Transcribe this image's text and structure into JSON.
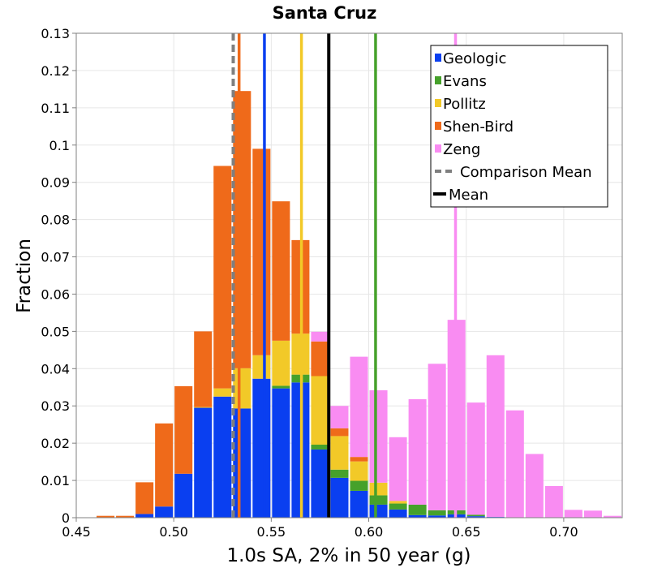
{
  "chart_data": {
    "type": "bar",
    "stacked": true,
    "title": "Santa Cruz",
    "xlabel": "1.0s SA, 2% in 50 year (g)",
    "ylabel": "Fraction",
    "xlim": [
      0.45,
      0.73
    ],
    "ylim": [
      0,
      0.13
    ],
    "x_ticks": [
      "0.45",
      "0.50",
      "0.55",
      "0.60",
      "0.65",
      "0.70"
    ],
    "y_ticks": [
      "0",
      "0.01",
      "0.02",
      "0.03",
      "0.04",
      "0.05",
      "0.06",
      "0.07",
      "0.08",
      "0.09",
      "0.1",
      "0.11",
      "0.12",
      "0.13"
    ],
    "bin_width": 0.01,
    "bin_starts": [
      0.46,
      0.47,
      0.48,
      0.49,
      0.5,
      0.51,
      0.52,
      0.53,
      0.54,
      0.55,
      0.56,
      0.57,
      0.58,
      0.59,
      0.6,
      0.61,
      0.62,
      0.63,
      0.64,
      0.65,
      0.66,
      0.67,
      0.68,
      0.69,
      0.7,
      0.71,
      0.72
    ],
    "series": [
      {
        "name": "Geologic",
        "color": "#0a3ff0",
        "values": [
          0,
          0,
          0.001,
          0.003,
          0.0118,
          0.0295,
          0.0325,
          0.0293,
          0.0373,
          0.0347,
          0.0363,
          0.0183,
          0.0107,
          0.0072,
          0.0035,
          0.0022,
          0.0007,
          0.0006,
          0.0009,
          0.0004,
          0.0002,
          0,
          0,
          0,
          0,
          0,
          0
        ]
      },
      {
        "name": "Evans",
        "color": "#46a12b",
        "values": [
          0,
          0,
          0,
          0,
          0,
          0,
          0,
          0,
          0,
          0.0007,
          0.0021,
          0.0013,
          0.0022,
          0.0027,
          0.0025,
          0.0016,
          0.0028,
          0.0014,
          0.0011,
          0.0004,
          0,
          0,
          0,
          0,
          0,
          0,
          0
        ]
      },
      {
        "name": "Pollitz",
        "color": "#f2c928",
        "values": [
          0,
          0,
          0,
          0,
          0,
          0.0002,
          0.0022,
          0.0108,
          0.0063,
          0.0121,
          0.011,
          0.0184,
          0.009,
          0.0052,
          0.0034,
          0.0007,
          0,
          0,
          0,
          0,
          0,
          0,
          0,
          0,
          0,
          0,
          0
        ]
      },
      {
        "name": "Shen-Bird",
        "color": "#ef6a1a",
        "values": [
          0.0005,
          0.0005,
          0.0085,
          0.0223,
          0.0235,
          0.0203,
          0.0597,
          0.0744,
          0.0554,
          0.0374,
          0.0251,
          0.0093,
          0.0021,
          0.0012,
          0,
          0,
          0,
          0,
          0,
          0,
          0,
          0,
          0,
          0,
          0,
          0,
          0
        ]
      },
      {
        "name": "Zeng",
        "color": "#f98cf2",
        "values": [
          0,
          0,
          0,
          0,
          0,
          0,
          0,
          0,
          0,
          0,
          0,
          0.0026,
          0.006,
          0.0269,
          0.0248,
          0.0171,
          0.0283,
          0.0393,
          0.0511,
          0.0301,
          0.0434,
          0.0288,
          0.0171,
          0.0085,
          0.0021,
          0.0019,
          0.0005
        ]
      }
    ],
    "vertical_lines": [
      {
        "name": "Geologic",
        "x": 0.5465,
        "color": "#0a3ff0",
        "style": "solid"
      },
      {
        "name": "Evans",
        "x": 0.6035,
        "color": "#46a12b",
        "style": "solid"
      },
      {
        "name": "Pollitz",
        "x": 0.5655,
        "color": "#f2c928",
        "style": "solid"
      },
      {
        "name": "Shen-Bird",
        "x": 0.5335,
        "color": "#ef6a1a",
        "style": "solid"
      },
      {
        "name": "Zeng",
        "x": 0.6445,
        "color": "#f98cf2",
        "style": "solid"
      },
      {
        "name": "Comparison Mean",
        "x": 0.5305,
        "color": "#7f7f7f",
        "style": "dashed"
      },
      {
        "name": "Mean",
        "x": 0.5795,
        "color": "#000000",
        "style": "solid"
      }
    ],
    "legend": {
      "position": "top-right",
      "entries": [
        {
          "label": "Geologic",
          "color": "#0a3ff0",
          "kind": "square"
        },
        {
          "label": "Evans",
          "color": "#46a12b",
          "kind": "square"
        },
        {
          "label": "Pollitz",
          "color": "#f2c928",
          "kind": "square"
        },
        {
          "label": "Shen-Bird",
          "color": "#ef6a1a",
          "kind": "square"
        },
        {
          "label": "Zeng",
          "color": "#f98cf2",
          "kind": "square"
        },
        {
          "label": "Comparison Mean",
          "color": "#7f7f7f",
          "kind": "dashed-line"
        },
        {
          "label": "Mean",
          "color": "#000000",
          "kind": "line"
        }
      ]
    },
    "grid": true
  }
}
